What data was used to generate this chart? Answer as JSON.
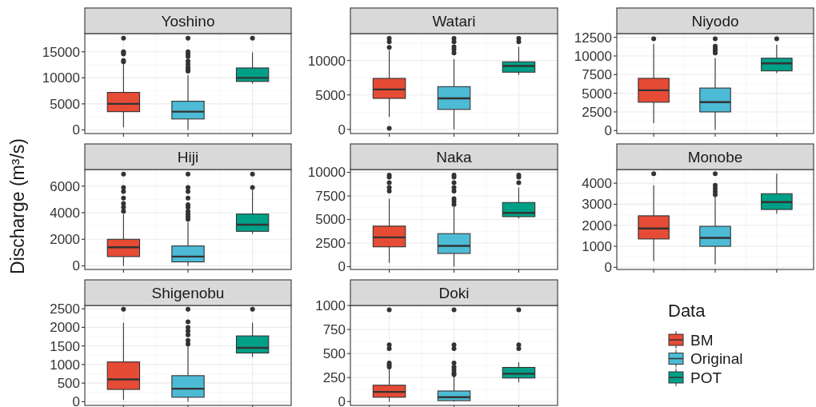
{
  "chart_data": [
    {
      "type": "box",
      "title": "Yoshino",
      "ylabel": "Discharge (m³/s)",
      "legend": "right",
      "legend_title": "Data",
      "categories": [
        null,
        null,
        null
      ],
      "ylim": [
        -700,
        18500
      ],
      "yticks": [
        0,
        5000,
        10000,
        15000
      ],
      "grid": true,
      "tick_labels": "y",
      "series": [
        {
          "name": "BM",
          "color": "#e64b35",
          "boxes": [
            {
              "low": 500,
              "q1": 3500,
              "median": 5000,
              "q3": 7200,
              "high": 12700,
              "outliers": [
                13100,
                13300,
                14600,
                14900,
                15000,
                17600
              ]
            },
            null,
            null
          ]
        },
        {
          "name": "Original",
          "color": "#4dbbd5",
          "boxes": [
            null,
            {
              "low": 0,
              "q1": 2100,
              "median": 3500,
              "q3": 5500,
              "high": 10500,
              "outliers": [
                11300,
                11600,
                12000,
                12600,
                13200,
                14100,
                14600,
                15000,
                17600
              ]
            },
            null
          ]
        },
        {
          "name": "POT",
          "color": "#00a087",
          "boxes": [
            null,
            null,
            {
              "low": 8900,
              "q1": 9300,
              "median": 10000,
              "q3": 11900,
              "high": 14900,
              "outliers": [
                17600
              ]
            }
          ]
        }
      ]
    },
    {
      "type": "box",
      "title": "Watari",
      "categories": [
        null,
        null,
        null
      ],
      "ylim": [
        -600,
        13900
      ],
      "yticks": [
        0,
        5000,
        10000
      ],
      "grid": true,
      "tick_labels": "y",
      "series": [
        {
          "color": "#e64b35",
          "boxes": [
            {
              "low": 1800,
              "q1": 4500,
              "median": 5800,
              "q3": 7400,
              "high": 11500,
              "outliers": [
                150,
                11900,
                12700,
                13200
              ]
            },
            null,
            null
          ]
        },
        {
          "color": "#4dbbd5",
          "boxes": [
            null,
            {
              "low": 0,
              "q1": 2900,
              "median": 4500,
              "q3": 6200,
              "high": 10200,
              "outliers": [
                11100,
                11600,
                12000,
                12700,
                13200
              ]
            },
            null
          ]
        },
        {
          "color": "#00a087",
          "boxes": [
            null,
            null,
            {
              "low": 7900,
              "q1": 8300,
              "median": 9200,
              "q3": 9800,
              "high": 12000,
              "outliers": [
                12700,
                13200
              ]
            }
          ]
        }
      ]
    },
    {
      "type": "box",
      "title": "Niyodo",
      "categories": [
        null,
        null,
        null
      ],
      "ylim": [
        -400,
        13000
      ],
      "yticks": [
        0,
        2500,
        5000,
        7500,
        10000,
        12500
      ],
      "grid": true,
      "tick_labels": "y",
      "series": [
        {
          "color": "#e64b35",
          "boxes": [
            {
              "low": 1000,
              "q1": 3800,
              "median": 5400,
              "q3": 7000,
              "high": 11600,
              "outliers": [
                12300
              ]
            },
            null,
            null
          ]
        },
        {
          "color": "#4dbbd5",
          "boxes": [
            null,
            {
              "low": 100,
              "q1": 2500,
              "median": 3800,
              "q3": 5700,
              "high": 9700,
              "outliers": [
                10400,
                10700,
                11000,
                11300,
                12300
              ]
            },
            null
          ]
        },
        {
          "color": "#00a087",
          "boxes": [
            null,
            null,
            {
              "low": 7700,
              "q1": 8000,
              "median": 9000,
              "q3": 9700,
              "high": 11500,
              "outliers": [
                12300
              ]
            }
          ]
        }
      ]
    },
    {
      "type": "box",
      "title": "Hiji",
      "categories": [
        null,
        null,
        null
      ],
      "ylim": [
        -270,
        7250
      ],
      "yticks": [
        0,
        2000,
        4000,
        6000
      ],
      "grid": true,
      "tick_labels": "y",
      "series": [
        {
          "color": "#e64b35",
          "boxes": [
            {
              "low": 0,
              "q1": 700,
              "median": 1400,
              "q3": 2000,
              "high": 3900,
              "outliers": [
                4100,
                4400,
                4700,
                5100,
                5600,
                5900,
                6900
              ]
            },
            null,
            null
          ]
        },
        {
          "color": "#4dbbd5",
          "boxes": [
            null,
            {
              "low": 0,
              "q1": 300,
              "median": 700,
              "q3": 1500,
              "high": 3300,
              "outliers": [
                3500,
                3700,
                3900,
                4100,
                4400,
                4600,
                5100,
                5600,
                5900,
                6900
              ]
            },
            null
          ]
        },
        {
          "color": "#00a087",
          "boxes": [
            null,
            null,
            {
              "low": 2400,
              "q1": 2600,
              "median": 3100,
              "q3": 3900,
              "high": 5700,
              "outliers": [
                5900,
                6900
              ]
            }
          ]
        }
      ]
    },
    {
      "type": "box",
      "title": "Naka",
      "categories": [
        null,
        null,
        null
      ],
      "ylim": [
        -300,
        10300
      ],
      "yticks": [
        0,
        2500,
        5000,
        7500,
        10000
      ],
      "grid": true,
      "tick_labels": "y",
      "series": [
        {
          "color": "#e64b35",
          "boxes": [
            {
              "low": 400,
              "q1": 2100,
              "median": 3100,
              "q3": 4300,
              "high": 7200,
              "outliers": [
                8000,
                8400,
                8900,
                9500,
                9700
              ]
            },
            null,
            null
          ]
        },
        {
          "color": "#4dbbd5",
          "boxes": [
            null,
            {
              "low": 0,
              "q1": 1400,
              "median": 2200,
              "q3": 3500,
              "high": 6300,
              "outliers": [
                6600,
                6900,
                7200,
                8000,
                8400,
                8900,
                9500,
                9700
              ]
            },
            null
          ]
        },
        {
          "color": "#00a087",
          "boxes": [
            null,
            null,
            {
              "low": 5100,
              "q1": 5300,
              "median": 5700,
              "q3": 6800,
              "high": 8400,
              "outliers": [
                8900,
                9500,
                9700
              ]
            }
          ]
        }
      ]
    },
    {
      "type": "box",
      "title": "Monobe",
      "categories": [
        null,
        null,
        null
      ],
      "ylim": [
        -100,
        4650
      ],
      "yticks": [
        0,
        1000,
        2000,
        3000,
        4000
      ],
      "grid": true,
      "tick_labels": "y",
      "series": [
        {
          "color": "#e64b35",
          "boxes": [
            {
              "low": 300,
              "q1": 1350,
              "median": 1850,
              "q3": 2450,
              "high": 3900,
              "outliers": [
                4450
              ]
            },
            null,
            null
          ]
        },
        {
          "color": "#4dbbd5",
          "boxes": [
            null,
            {
              "low": 150,
              "q1": 1000,
              "median": 1400,
              "q3": 1950,
              "high": 3350,
              "outliers": [
                3450,
                3600,
                3750,
                3900,
                4450
              ]
            },
            null
          ]
        },
        {
          "color": "#00a087",
          "boxes": [
            null,
            null,
            {
              "low": 2550,
              "q1": 2750,
              "median": 3100,
              "q3": 3500,
              "high": 4450
            }
          ]
        }
      ]
    },
    {
      "type": "box",
      "title": "Shigenobu",
      "categories": [
        null,
        null,
        null
      ],
      "ylim": [
        -100,
        2590
      ],
      "yticks": [
        0,
        500,
        1000,
        1500,
        2000,
        2500
      ],
      "grid": true,
      "tick_labels": "y",
      "series": [
        {
          "color": "#e64b35",
          "boxes": [
            {
              "low": 50,
              "q1": 330,
              "median": 600,
              "q3": 1070,
              "high": 2120,
              "outliers": [
                2490
              ]
            },
            null,
            null
          ]
        },
        {
          "color": "#4dbbd5",
          "boxes": [
            null,
            {
              "low": 0,
              "q1": 120,
              "median": 350,
              "q3": 700,
              "high": 1500,
              "outliers": [
                1550,
                1650,
                1800,
                1900,
                2000,
                2150,
                2490
              ]
            },
            null
          ]
        },
        {
          "color": "#00a087",
          "boxes": [
            null,
            null,
            {
              "low": 1200,
              "q1": 1310,
              "median": 1450,
              "q3": 1770,
              "high": 2130,
              "outliers": [
                2490
              ]
            }
          ]
        }
      ]
    },
    {
      "type": "box",
      "title": "Doki",
      "categories": [
        null,
        null,
        null
      ],
      "ylim": [
        -40,
        1000
      ],
      "yticks": [
        0,
        250,
        500,
        750,
        1000
      ],
      "grid": true,
      "tick_labels": "y",
      "series": [
        {
          "color": "#e64b35",
          "boxes": [
            {
              "low": 0,
              "q1": 45,
              "median": 100,
              "q3": 170,
              "high": 340,
              "outliers": [
                360,
                380,
                400,
                550,
                590,
                955
              ]
            },
            null,
            null
          ]
        },
        {
          "color": "#4dbbd5",
          "boxes": [
            null,
            {
              "low": 0,
              "q1": 10,
              "median": 45,
              "q3": 110,
              "high": 260,
              "outliers": [
                280,
                300,
                330,
                360,
                400,
                550,
                590,
                955
              ]
            },
            null
          ]
        },
        {
          "color": "#00a087",
          "boxes": [
            null,
            null,
            {
              "low": 200,
              "q1": 245,
              "median": 290,
              "q3": 355,
              "high": 410,
              "outliers": [
                550,
                590,
                955
              ]
            }
          ]
        }
      ]
    }
  ]
}
